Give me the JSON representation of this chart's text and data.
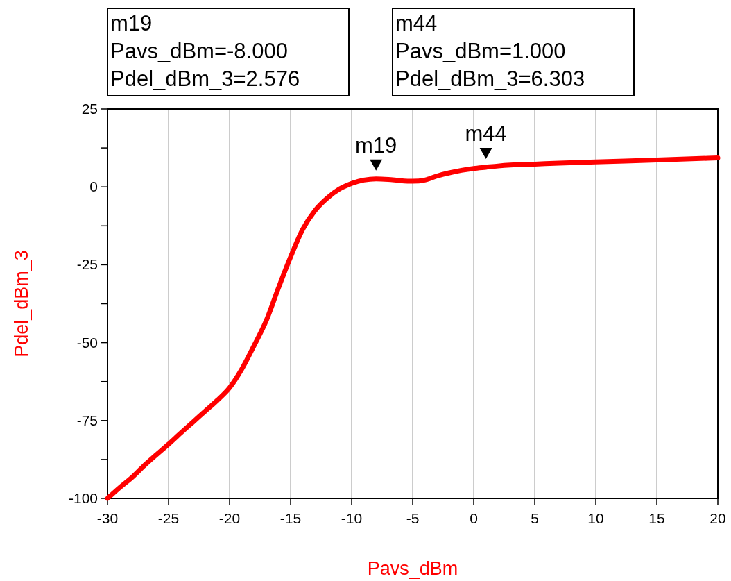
{
  "chart_data": {
    "type": "line",
    "xlabel": "Pavs_dBm",
    "ylabel": "Pdel_dBm_3",
    "x": [
      -30,
      -29,
      -28,
      -27,
      -26,
      -25,
      -24,
      -23,
      -22,
      -21,
      -20,
      -19,
      -18,
      -17,
      -16,
      -15,
      -14,
      -13,
      -12,
      -11,
      -10,
      -9,
      -8,
      -7,
      -6,
      -5,
      -4,
      -3,
      -2,
      -1,
      0,
      1,
      2,
      3,
      5,
      7,
      10,
      15,
      20
    ],
    "series": [
      {
        "color": "#ff0000",
        "values": [
          -100,
          -96.5,
          -93.3,
          -89.5,
          -86,
          -82.6,
          -79,
          -75.5,
          -72,
          -68.5,
          -64.5,
          -58.5,
          -51,
          -43,
          -32.5,
          -22.5,
          -13.6,
          -7.6,
          -3.6,
          -0.7,
          1.1,
          2.2,
          2.576,
          2.4,
          2.0,
          1.8,
          2.2,
          3.5,
          4.5,
          5.3,
          5.9,
          6.303,
          6.7,
          7.0,
          7.3,
          7.6,
          8.0,
          8.6,
          9.3
        ]
      }
    ],
    "xlim": [
      -30,
      20
    ],
    "xticks": [
      -30,
      -25,
      -20,
      -15,
      -10,
      -5,
      0,
      5,
      10,
      15,
      20
    ],
    "ylim": [
      -100,
      25
    ],
    "yticks": [
      -100,
      {
        "value": -87.5,
        "label": null
      },
      -75,
      {
        "value": -62.5,
        "label": null
      },
      -50,
      {
        "value": -37.5,
        "label": null
      },
      -25,
      {
        "value": -12.5,
        "label": null
      },
      0,
      {
        "value": 12.5,
        "label": null
      },
      25
    ],
    "grid": "x",
    "marker": "none",
    "line_style": "solid",
    "annotations": [
      "m19\nPavs_dBm=-8.000\nPdel_dBm_3=2.576",
      "m44\nPavs_dBm=1.000\nPdel_dBm_3=6.303",
      {
        "text": "m19",
        "x": -8,
        "y": 2.576
      },
      {
        "text": "m44",
        "x": 1,
        "y": 6.303
      }
    ]
  }
}
